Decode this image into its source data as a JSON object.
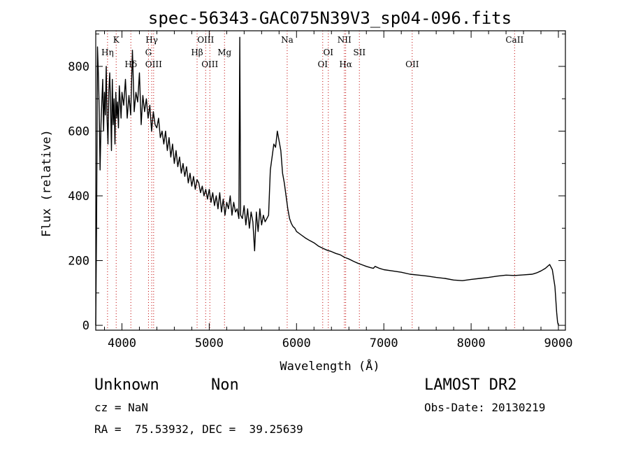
{
  "chart_data": {
    "type": "line",
    "title": "spec-56343-GAC075N39V3_sp04-096.fits",
    "xlabel": "Wavelength (Å)",
    "ylabel": "Flux (relative)",
    "xlim": [
      3700,
      9080
    ],
    "ylim": [
      -15,
      910
    ],
    "xticks": [
      4000,
      5000,
      6000,
      7000,
      8000,
      9000
    ],
    "yticks": [
      0,
      200,
      400,
      600,
      800
    ],
    "line_color": "#000000",
    "marker_color": "#c00000",
    "series": [
      {
        "x": [
          3700,
          3710,
          3720,
          3730,
          3740,
          3750,
          3760,
          3770,
          3780,
          3790,
          3800,
          3810,
          3820,
          3830,
          3840,
          3850,
          3860,
          3870,
          3880,
          3890,
          3900,
          3910,
          3920,
          3930,
          3940,
          3950,
          3960,
          3970,
          3980,
          3990,
          4000,
          4020,
          4040,
          4060,
          4080,
          4100,
          4120,
          4140,
          4160,
          4180,
          4200,
          4220,
          4240,
          4260,
          4280,
          4300,
          4320,
          4340,
          4360,
          4380,
          4400,
          4420,
          4440,
          4460,
          4480,
          4500,
          4520,
          4540,
          4560,
          4580,
          4600,
          4620,
          4640,
          4660,
          4680,
          4700,
          4720,
          4740,
          4760,
          4780,
          4800,
          4820,
          4840,
          4860,
          4880,
          4900,
          4920,
          4940,
          4960,
          4980,
          5000,
          5020,
          5040,
          5060,
          5080,
          5100,
          5120,
          5140,
          5160,
          5180,
          5200,
          5220,
          5240,
          5260,
          5280,
          5300,
          5320,
          5340,
          5350,
          5360,
          5380,
          5400,
          5420,
          5440,
          5460,
          5480,
          5500,
          5520,
          5540,
          5560,
          5580,
          5600,
          5620,
          5640,
          5660,
          5680,
          5700,
          5720,
          5740,
          5760,
          5780,
          5800,
          5820,
          5840,
          5860,
          5880,
          5900,
          5920,
          5940,
          5960,
          5980,
          6000,
          6050,
          6100,
          6150,
          6200,
          6250,
          6300,
          6350,
          6400,
          6450,
          6500,
          6550,
          6600,
          6650,
          6700,
          6750,
          6800,
          6850,
          6880,
          6900,
          6950,
          7000,
          7100,
          7200,
          7300,
          7400,
          7500,
          7600,
          7700,
          7800,
          7900,
          8000,
          8100,
          8200,
          8300,
          8400,
          8500,
          8600,
          8700,
          8750,
          8800,
          8850,
          8900,
          8930,
          8960,
          8980,
          8990,
          9000
        ],
        "y": [
          0,
          320,
          860,
          780,
          660,
          480,
          620,
          690,
          760,
          600,
          720,
          650,
          800,
          640,
          560,
          720,
          780,
          680,
          540,
          760,
          620,
          700,
          560,
          720,
          640,
          690,
          610,
          740,
          690,
          640,
          720,
          680,
          760,
          640,
          710,
          650,
          850,
          660,
          720,
          690,
          780,
          620,
          710,
          660,
          700,
          640,
          680,
          600,
          660,
          620,
          610,
          640,
          580,
          600,
          560,
          600,
          540,
          580,
          520,
          560,
          500,
          540,
          490,
          520,
          470,
          500,
          460,
          490,
          440,
          470,
          430,
          460,
          420,
          450,
          440,
          410,
          430,
          400,
          420,
          390,
          420,
          380,
          410,
          370,
          400,
          360,
          410,
          350,
          390,
          340,
          380,
          360,
          400,
          340,
          380,
          350,
          360,
          330,
          890,
          340,
          330,
          370,
          310,
          360,
          300,
          350,
          320,
          230,
          350,
          290,
          360,
          310,
          340,
          320,
          330,
          340,
          480,
          520,
          560,
          550,
          600,
          570,
          540,
          470,
          440,
          400,
          360,
          330,
          315,
          305,
          300,
          290,
          280,
          270,
          262,
          255,
          245,
          238,
          232,
          228,
          222,
          218,
          210,
          205,
          198,
          192,
          187,
          182,
          178,
          176,
          182,
          176,
          172,
          168,
          164,
          158,
          155,
          152,
          148,
          145,
          140,
          138,
          142,
          145,
          148,
          152,
          155,
          154,
          156,
          158,
          162,
          168,
          176,
          188,
          172,
          120,
          40,
          10,
          0
        ]
      }
    ],
    "spectral_lines": [
      {
        "label": "Hη",
        "wavelength": 3835,
        "row": 2
      },
      {
        "label": "K",
        "wavelength": 3934,
        "row": 1
      },
      {
        "label": "Hδ",
        "wavelength": 4102,
        "row": 3
      },
      {
        "label": "Hγ",
        "wavelength": 4341,
        "row": 1
      },
      {
        "label": "G",
        "wavelength": 4304,
        "row": 2
      },
      {
        "label": "OIII",
        "wavelength": 4363,
        "row": 3
      },
      {
        "label": "Hβ",
        "wavelength": 4861,
        "row": 2
      },
      {
        "label": "OIII",
        "wavelength": 4959,
        "row": 1
      },
      {
        "label": "OIII",
        "wavelength": 5007,
        "row": 3
      },
      {
        "label": "Mg",
        "wavelength": 5175,
        "row": 2
      },
      {
        "label": "Na",
        "wavelength": 5893,
        "row": 1
      },
      {
        "label": "OI",
        "wavelength": 6300,
        "row": 3
      },
      {
        "label": "OI",
        "wavelength": 6364,
        "row": 2
      },
      {
        "label": "NII",
        "wavelength": 6548,
        "row": 1
      },
      {
        "label": "Hα",
        "wavelength": 6563,
        "row": 3
      },
      {
        "label": "SII",
        "wavelength": 6720,
        "row": 2
      },
      {
        "label": "OII",
        "wavelength": 7325,
        "row": 3
      },
      {
        "label": "CaII",
        "wavelength": 8498,
        "row": 1
      }
    ]
  },
  "info": {
    "class": "Unknown",
    "subclass": "Non",
    "cz": "cz = NaN",
    "radec": "RA =  75.53932, DEC =  39.25639",
    "survey": "LAMOST DR2",
    "obs_date": "Obs-Date: 20130219"
  }
}
